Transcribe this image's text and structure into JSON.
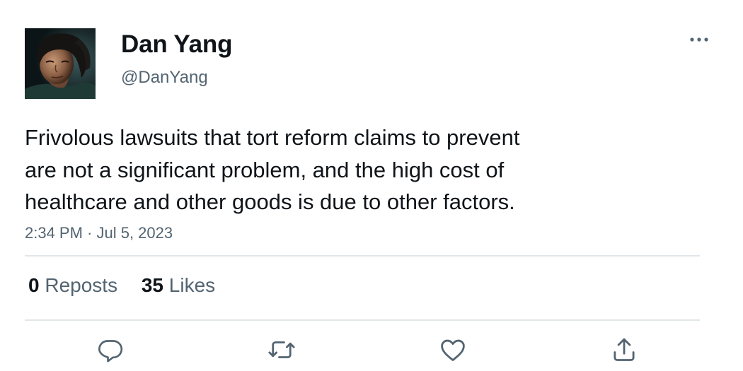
{
  "author": {
    "display_name": "Dan Yang",
    "handle": "@DanYang"
  },
  "tweet": {
    "text": "Frivolous lawsuits that tort reform claims to prevent\nare not a significant problem, and the high cost of\nhealthcare and other goods is due to other factors.",
    "timestamp": "2:34 PM · Jul 5, 2023"
  },
  "stats": {
    "reposts_count": "0",
    "reposts_label": "Reposts",
    "likes_count": "35",
    "likes_label": "Likes"
  },
  "icons": {
    "more": "more-horizontal-icon",
    "reply": "reply-icon",
    "repost": "repost-icon",
    "like": "heart-icon",
    "share": "share-icon"
  },
  "colors": {
    "text_primary": "#0f1419",
    "text_secondary": "#536471",
    "divider": "#e1e6ea"
  }
}
